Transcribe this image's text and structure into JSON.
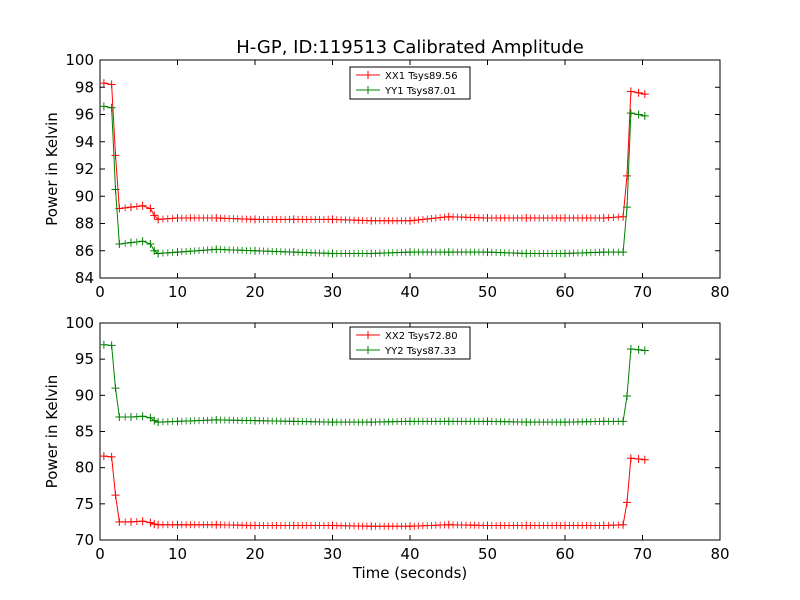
{
  "figure": {
    "title": "H-GP, ID:119513 Calibrated Amplitude"
  },
  "chart_data": [
    {
      "type": "line",
      "title": "H-GP, ID:119513 Calibrated Amplitude",
      "xlabel": "",
      "ylabel": "Power in Kelvin",
      "xlim": [
        0,
        80
      ],
      "ylim": [
        84,
        100
      ],
      "xticks": [
        0,
        10,
        20,
        30,
        40,
        50,
        60,
        70,
        80
      ],
      "yticks": [
        84,
        86,
        88,
        90,
        92,
        94,
        96,
        98,
        100
      ],
      "grid": false,
      "legend_position": "top-center",
      "series": [
        {
          "name": "XX1 Tsys89.56",
          "color": "#ff0000",
          "marker": "plus",
          "x": [
            0.5,
            1.5,
            2.0,
            2.5,
            4.0,
            5.5,
            6.5,
            7.0,
            7.5,
            10,
            15,
            20,
            25,
            30,
            35,
            40,
            45,
            50,
            55,
            60,
            65,
            67.5,
            68.0,
            68.5,
            69.5,
            70.3
          ],
          "y": [
            98.3,
            98.2,
            93.0,
            89.1,
            89.2,
            89.3,
            89.1,
            88.6,
            88.3,
            88.4,
            88.4,
            88.3,
            88.3,
            88.3,
            88.2,
            88.2,
            88.5,
            88.4,
            88.4,
            88.4,
            88.4,
            88.5,
            91.5,
            97.7,
            97.6,
            97.5
          ]
        },
        {
          "name": "YY1 Tsys87.01",
          "color": "#008000",
          "marker": "plus",
          "x": [
            0.5,
            1.5,
            2.0,
            2.5,
            4.0,
            5.5,
            6.5,
            7.0,
            7.5,
            10,
            15,
            20,
            25,
            30,
            35,
            40,
            45,
            50,
            55,
            60,
            65,
            67.5,
            68.0,
            68.5,
            69.5,
            70.3
          ],
          "y": [
            96.6,
            96.5,
            90.5,
            86.5,
            86.6,
            86.7,
            86.5,
            86.0,
            85.8,
            85.9,
            86.1,
            86.0,
            85.9,
            85.8,
            85.8,
            85.9,
            85.9,
            85.9,
            85.8,
            85.8,
            85.9,
            85.9,
            89.2,
            96.1,
            96.0,
            95.9
          ]
        }
      ]
    },
    {
      "type": "line",
      "title": "",
      "xlabel": "Time (seconds)",
      "ylabel": "Power in Kelvin",
      "xlim": [
        0,
        80
      ],
      "ylim": [
        70,
        100
      ],
      "xticks": [
        0,
        10,
        20,
        30,
        40,
        50,
        60,
        70,
        80
      ],
      "yticks": [
        70,
        75,
        80,
        85,
        90,
        95,
        100
      ],
      "grid": false,
      "legend_position": "top-center",
      "series": [
        {
          "name": "XX2 Tsys72.80",
          "color": "#ff0000",
          "marker": "plus",
          "x": [
            0.5,
            1.5,
            2.0,
            2.5,
            4.0,
            5.5,
            6.5,
            7.0,
            7.5,
            10,
            15,
            20,
            25,
            30,
            35,
            40,
            45,
            50,
            55,
            60,
            65,
            67.5,
            68.0,
            68.5,
            69.5,
            70.3
          ],
          "y": [
            81.6,
            81.5,
            76.2,
            72.5,
            72.5,
            72.6,
            72.4,
            72.2,
            72.1,
            72.1,
            72.1,
            72.0,
            72.0,
            72.0,
            71.9,
            71.9,
            72.1,
            72.0,
            72.0,
            72.0,
            72.0,
            72.1,
            75.2,
            81.3,
            81.2,
            81.1
          ]
        },
        {
          "name": "YY2 Tsys87.33",
          "color": "#008000",
          "marker": "plus",
          "x": [
            0.5,
            1.5,
            2.0,
            2.5,
            4.0,
            5.5,
            6.5,
            7.0,
            7.5,
            10,
            15,
            20,
            25,
            30,
            35,
            40,
            45,
            50,
            55,
            60,
            65,
            67.5,
            68.0,
            68.5,
            69.5,
            70.3
          ],
          "y": [
            97.0,
            96.9,
            91.0,
            87.0,
            87.0,
            87.1,
            86.9,
            86.5,
            86.3,
            86.4,
            86.6,
            86.5,
            86.4,
            86.3,
            86.3,
            86.4,
            86.4,
            86.4,
            86.3,
            86.3,
            86.4,
            86.4,
            89.9,
            96.4,
            96.3,
            96.2
          ]
        }
      ]
    }
  ]
}
